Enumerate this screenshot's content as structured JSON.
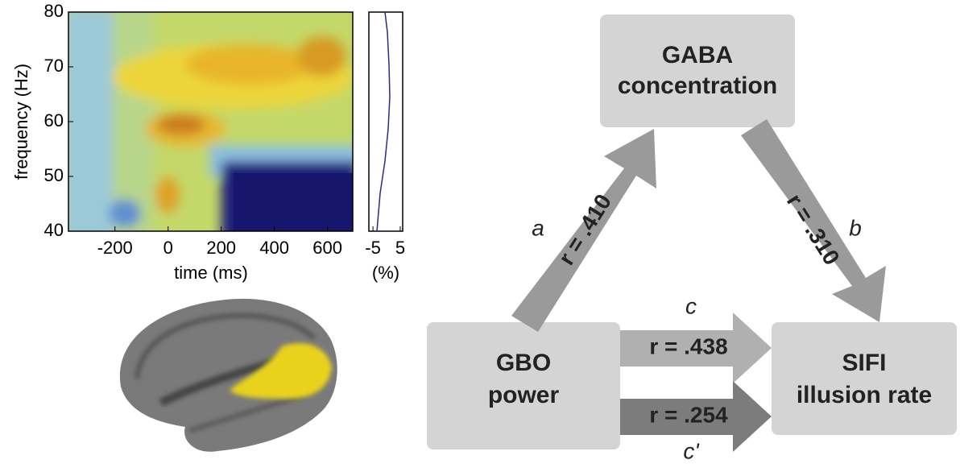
{
  "spectrogram": {
    "xlabel": "time (ms)",
    "ylabel": "frequency (Hz)",
    "xlim": [
      -375,
      695
    ],
    "ylim": [
      40,
      80
    ],
    "xticks": [
      -200,
      0,
      200,
      400,
      600
    ],
    "yticks": [
      40,
      50,
      60,
      70,
      80
    ]
  },
  "profile": {
    "xlabel": "(%)",
    "xlim": [
      -6.5,
      5.9
    ],
    "xticks": [
      -5,
      5
    ]
  },
  "diagram": {
    "nodes": [
      {
        "lines": [
          "GABA",
          "concentration"
        ]
      },
      {
        "lines": [
          "GBO",
          "power"
        ]
      },
      {
        "lines": [
          "SIFI",
          "illusion rate"
        ]
      }
    ],
    "edges": [
      {
        "letter": "a",
        "label": "r = .410"
      },
      {
        "letter": "b",
        "label": "r = .310"
      },
      {
        "letter": "c",
        "label": "r = .438"
      },
      {
        "letter": "c'",
        "label": "r = .254"
      }
    ]
  }
}
